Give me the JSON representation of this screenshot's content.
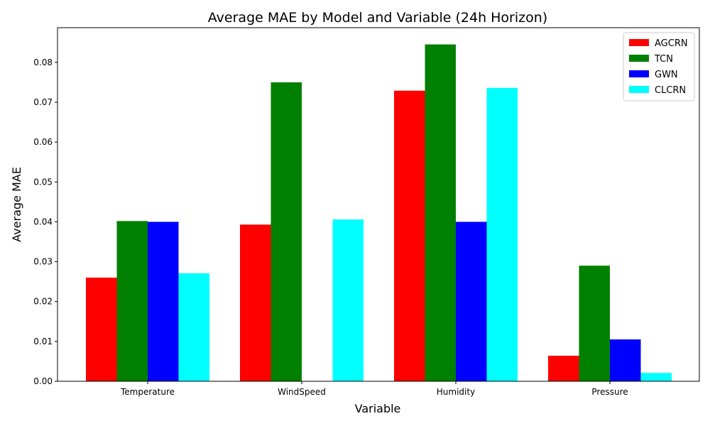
{
  "chart_data": {
    "type": "bar",
    "title": "Average MAE by Model and Variable (24h Horizon)",
    "xlabel": "Variable",
    "ylabel": "Average MAE",
    "categories": [
      "Temperature",
      "WindSpeed",
      "Humidity",
      "Pressure"
    ],
    "series": [
      {
        "name": "AGCRN",
        "color": "#ff0000",
        "values": [
          0.026,
          0.0393,
          0.0729,
          0.0064
        ]
      },
      {
        "name": "TCN",
        "color": "#008000",
        "values": [
          0.0402,
          0.075,
          0.0845,
          0.029
        ]
      },
      {
        "name": "GWN",
        "color": "#0000ff",
        "values": [
          0.04,
          0.0,
          0.04,
          0.0105
        ]
      },
      {
        "name": "CLCRN",
        "color": "#00ffff",
        "values": [
          0.0271,
          0.0406,
          0.0736,
          0.0021
        ]
      }
    ],
    "ylim": [
      0,
      0.0887
    ],
    "yticks": [
      "0.00",
      "0.01",
      "0.02",
      "0.03",
      "0.04",
      "0.05",
      "0.06",
      "0.07",
      "0.08"
    ],
    "legend_position": "top-right",
    "grid": false
  }
}
